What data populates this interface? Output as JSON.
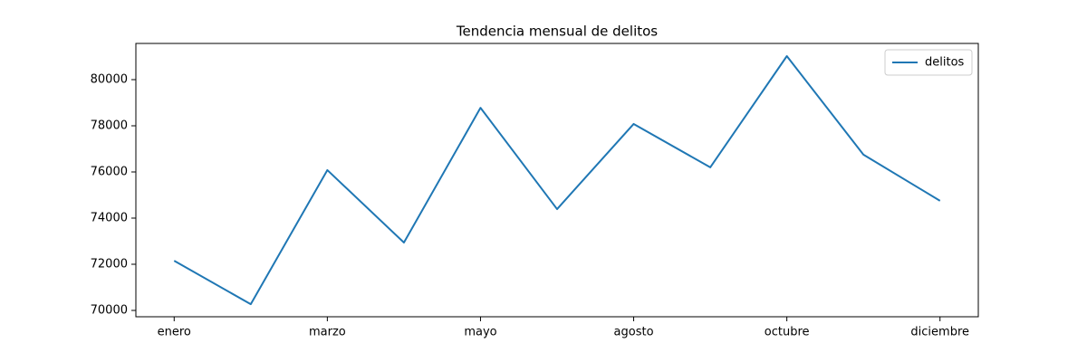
{
  "chart_data": {
    "type": "line",
    "title": "Tendencia mensual de delitos",
    "categories": [
      "enero",
      null,
      "marzo",
      null,
      "mayo",
      null,
      "agosto",
      null,
      "octubre",
      null,
      "diciembre"
    ],
    "series": [
      {
        "name": "delitos",
        "color": "#1f77b4",
        "values": [
          72150,
          70270,
          76080,
          72940,
          78780,
          74390,
          78080,
          76200,
          81020,
          76750,
          74750
        ]
      }
    ],
    "ylim": [
      69725,
      81569
    ],
    "yticks": [
      70000,
      72000,
      74000,
      76000,
      78000,
      80000
    ],
    "legend": "upper right"
  }
}
